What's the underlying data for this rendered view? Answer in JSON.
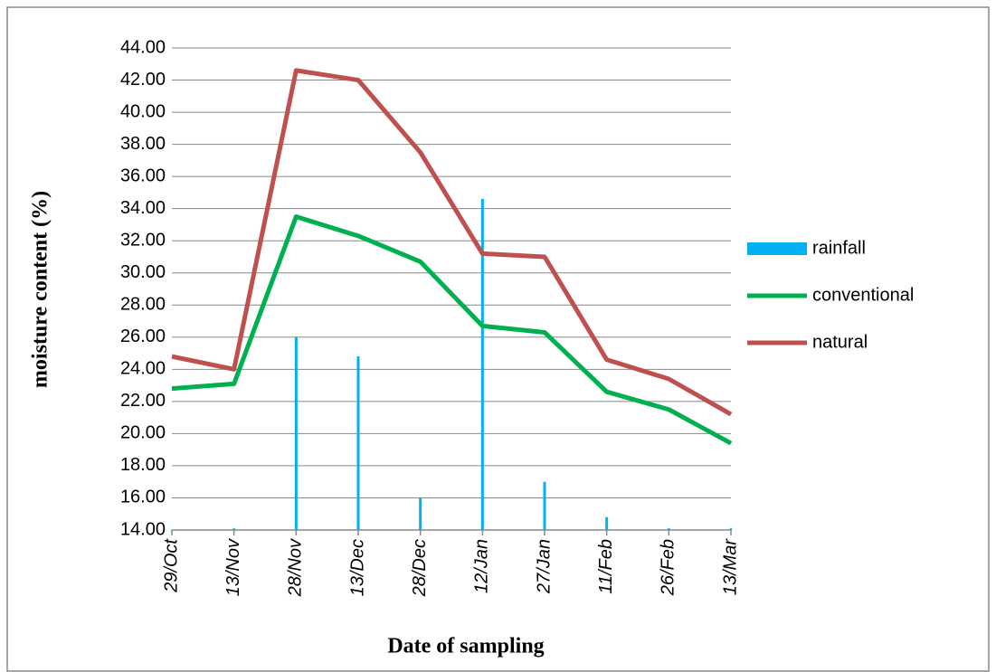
{
  "chart_data": {
    "type": "combo",
    "y_label": "moisture content (%)",
    "x_label": "Date of sampling",
    "categories": [
      "29/Oct",
      "13/Nov",
      "28/Nov",
      "13/Dec",
      "28/Dec",
      "12/Jan",
      "27/Jan",
      "11/Feb",
      "26/Feb",
      "13/Mar"
    ],
    "series": [
      {
        "name": "rainfall",
        "type": "bar",
        "color": "#00b0f0",
        "values": [
          14.0,
          14.1,
          26.0,
          24.8,
          16.0,
          34.6,
          17.0,
          14.8,
          14.1,
          14.1
        ]
      },
      {
        "name": "conventional",
        "type": "line",
        "color": "#00b050",
        "values": [
          22.8,
          23.1,
          33.5,
          32.3,
          30.7,
          26.7,
          26.3,
          22.6,
          21.5,
          19.4
        ]
      },
      {
        "name": "natural",
        "type": "line",
        "color": "#c0504d",
        "values": [
          24.8,
          24.0,
          42.6,
          42.0,
          37.5,
          31.2,
          31.0,
          24.6,
          23.4,
          21.2
        ]
      }
    ],
    "ylim": [
      14,
      44
    ],
    "yticks": [
      {
        "value": 14,
        "label": "14.00"
      },
      {
        "value": 16,
        "label": "16.00"
      },
      {
        "value": 18,
        "label": "18.00"
      },
      {
        "value": 20,
        "label": "20.00"
      },
      {
        "value": 22,
        "label": "22.00"
      },
      {
        "value": 24,
        "label": "24.00"
      },
      {
        "value": 26,
        "label": "26.00"
      },
      {
        "value": 28,
        "label": "28.00"
      },
      {
        "value": 30,
        "label": "30.00"
      },
      {
        "value": 32,
        "label": "32.00"
      },
      {
        "value": 34,
        "label": "34.00"
      },
      {
        "value": 36,
        "label": "36.00"
      },
      {
        "value": 38,
        "label": "38.00"
      },
      {
        "value": 40,
        "label": "40.00"
      },
      {
        "value": 42,
        "label": "42.00"
      },
      {
        "value": 44,
        "label": "44.00"
      }
    ],
    "grid": true,
    "legend": "right"
  }
}
